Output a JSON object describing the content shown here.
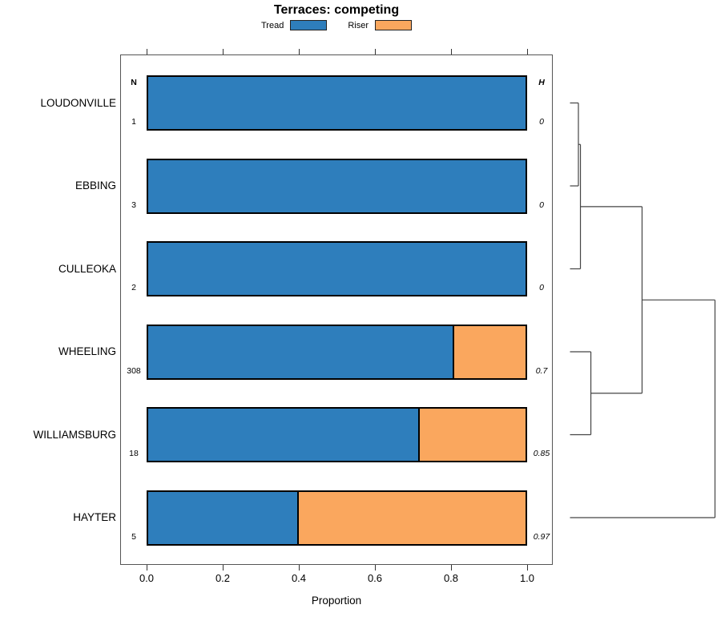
{
  "chart_data": {
    "type": "bar",
    "variant": "horizontal-stacked-with-dendrogram",
    "title": "Terraces: competing",
    "xlabel": "Proportion",
    "xlim": [
      0.0,
      1.0
    ],
    "xticks": [
      "0.0",
      "0.2",
      "0.4",
      "0.6",
      "0.8",
      "1.0"
    ],
    "xtick_values": [
      0.0,
      0.2,
      0.4,
      0.6,
      0.8,
      1.0
    ],
    "grid": false,
    "legend_position": "top-center",
    "series_names": [
      "Tread",
      "Riser"
    ],
    "series_colors": [
      "#2E7EBC",
      "#FAA75E"
    ],
    "col_headers": {
      "n": "N",
      "h": "H"
    },
    "rows": [
      {
        "label": "LOUDONVILLE",
        "n": "1",
        "h": "0",
        "tread": 1.0,
        "riser": 0.0
      },
      {
        "label": "EBBING",
        "n": "3",
        "h": "0",
        "tread": 1.0,
        "riser": 0.0
      },
      {
        "label": "CULLEOKA",
        "n": "2",
        "h": "0",
        "tread": 1.0,
        "riser": 0.0
      },
      {
        "label": "WHEELING",
        "n": "308",
        "h": "0.7",
        "tread": 0.81,
        "riser": 0.19
      },
      {
        "label": "WILLIAMSBURG",
        "n": "18",
        "h": "0.85",
        "tread": 0.72,
        "riser": 0.28
      },
      {
        "label": "HAYTER",
        "n": "5",
        "h": "0.97",
        "tread": 0.4,
        "riser": 0.6
      }
    ],
    "dendrogram": {
      "note": "merges reference leaf indices 0-5 (row order), then new clusters 6,7,8,9,10; height is relative 0-1 from leaves to root",
      "merges": [
        {
          "a": 0,
          "b": 1,
          "height": 0.058
        },
        {
          "a": 6,
          "b": 2,
          "height": 0.072
        },
        {
          "a": 3,
          "b": 4,
          "height": 0.144
        },
        {
          "a": 7,
          "b": 8,
          "height": 0.497
        },
        {
          "a": 9,
          "b": 5,
          "height": 1.0
        }
      ]
    }
  }
}
